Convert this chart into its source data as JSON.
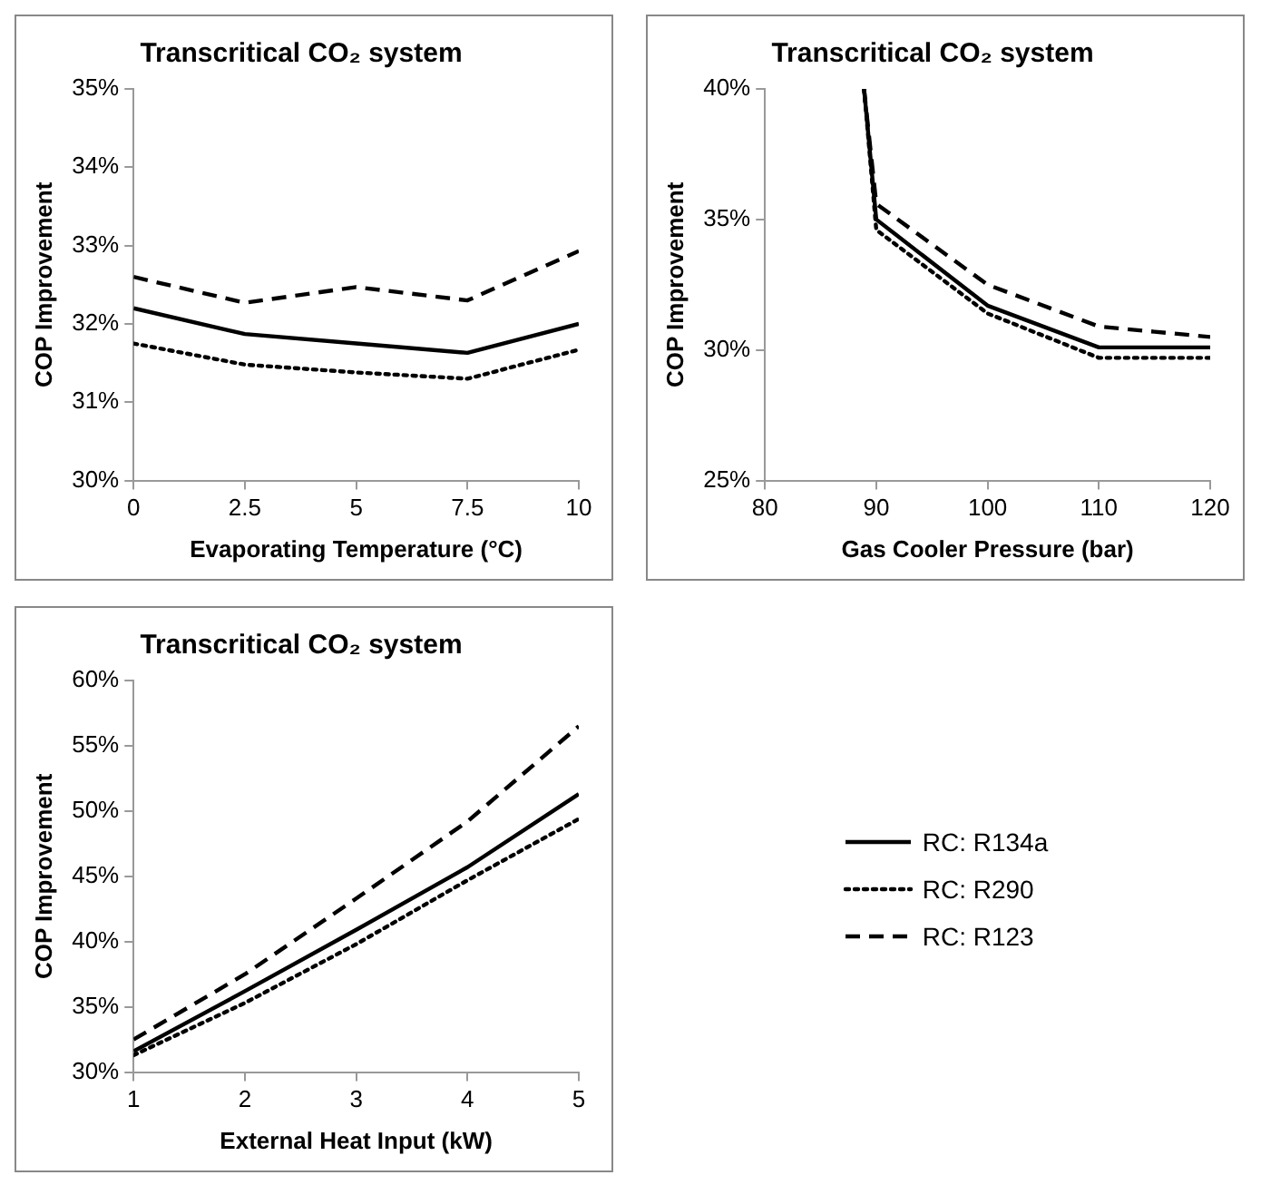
{
  "chart_data": [
    {
      "type": "line",
      "title": "Transcritical CO₂ system",
      "xlabel": "Evaporating Temperature (°C)",
      "ylabel": "COP Improvement",
      "x": [
        0,
        2.5,
        5,
        7.5,
        10
      ],
      "xlim": [
        0,
        10
      ],
      "xticks": [
        0,
        2.5,
        5,
        7.5,
        10
      ],
      "ylim": [
        30,
        35
      ],
      "yticks": [
        {
          "value": 30,
          "label": "30%"
        },
        {
          "value": 31,
          "label": "31%"
        },
        {
          "value": 32,
          "label": "32%"
        },
        {
          "value": 33,
          "label": "33%"
        },
        {
          "value": 34,
          "label": "34%"
        },
        {
          "value": 35,
          "label": "35%"
        }
      ],
      "grid": false,
      "legend": false,
      "marker": "none",
      "series": [
        {
          "color": "#000000",
          "line_style": "solid",
          "values": [
            32.2,
            31.87,
            31.75,
            31.63,
            32.0
          ]
        },
        {
          "color": "#000000",
          "line_style": "dotted",
          "values": [
            31.75,
            31.48,
            31.38,
            31.3,
            31.67
          ]
        },
        {
          "color": "#000000",
          "line_style": "dashed",
          "values": [
            32.6,
            32.27,
            32.47,
            32.3,
            32.93
          ]
        }
      ]
    },
    {
      "type": "line",
      "title": "Transcritical CO₂ system",
      "xlabel": "Gas Cooler Pressure (bar)",
      "ylabel": "COP Improvement",
      "x": [
        88.9,
        90,
        100,
        110,
        120
      ],
      "xlim": [
        80,
        120
      ],
      "xticks": [
        80,
        90,
        100,
        110,
        120
      ],
      "ylim": [
        25,
        40
      ],
      "yticks": [
        {
          "value": 25,
          "label": "25%"
        },
        {
          "value": 30,
          "label": "30%"
        },
        {
          "value": 35,
          "label": "35%"
        },
        {
          "value": 40,
          "label": "40%"
        }
      ],
      "grid": false,
      "legend": false,
      "marker": "none",
      "series": [
        {
          "color": "#000000",
          "line_style": "solid",
          "values": [
            40,
            35.0,
            31.7,
            30.1,
            30.1
          ]
        },
        {
          "color": "#000000",
          "line_style": "dotted",
          "values": [
            40,
            34.6,
            31.4,
            29.7,
            29.7
          ]
        },
        {
          "color": "#000000",
          "line_style": "dashed",
          "values": [
            40,
            35.6,
            32.5,
            30.9,
            30.5
          ]
        }
      ]
    },
    {
      "type": "line",
      "title": "Transcritical CO₂ system",
      "xlabel": "External Heat Input (kW)",
      "ylabel": "COP Improvement",
      "x": [
        1,
        2,
        3,
        4,
        5
      ],
      "xlim": [
        1,
        5
      ],
      "xticks": [
        1,
        2,
        3,
        4,
        5
      ],
      "ylim": [
        30,
        60
      ],
      "yticks": [
        {
          "value": 30,
          "label": "30%"
        },
        {
          "value": 35,
          "label": "35%"
        },
        {
          "value": 40,
          "label": "40%"
        },
        {
          "value": 45,
          "label": "45%"
        },
        {
          "value": 50,
          "label": "50%"
        },
        {
          "value": 55,
          "label": "55%"
        },
        {
          "value": 60,
          "label": "60%"
        }
      ],
      "grid": false,
      "legend": "right",
      "marker": "none",
      "series": [
        {
          "name": "RC: R134a",
          "color": "#000000",
          "line_style": "solid",
          "values": [
            31.6,
            36.2,
            40.9,
            45.7,
            51.3
          ]
        },
        {
          "name": "RC: R290",
          "color": "#000000",
          "line_style": "dotted",
          "values": [
            31.3,
            35.3,
            39.8,
            44.7,
            49.4
          ]
        },
        {
          "name": "RC: R123",
          "color": "#000000",
          "line_style": "dashed",
          "values": [
            32.5,
            37.5,
            43.3,
            49.2,
            56.5
          ]
        }
      ]
    }
  ]
}
